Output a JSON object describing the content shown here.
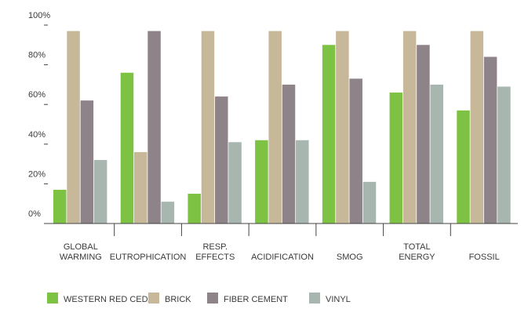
{
  "chart_data": {
    "type": "bar",
    "categories": [
      [
        "GLOBAL",
        "WARMING"
      ],
      [
        "EUTROPHICATION"
      ],
      [
        "RESP.",
        "EFFECTS"
      ],
      [
        "ACIDIFICATION"
      ],
      [
        "SMOG"
      ],
      [
        "TOTAL",
        "ENERGY"
      ],
      [
        "FOSSIL"
      ]
    ],
    "series": [
      {
        "name": "WESTERN RED CEDAR",
        "color": "#7dc242",
        "values": [
          17,
          76,
          15,
          42,
          90,
          66,
          57
        ]
      },
      {
        "name": "BRICK",
        "color": "#c7b899",
        "values": [
          97,
          36,
          97,
          97,
          97,
          97,
          97
        ]
      },
      {
        "name": "FIBER CEMENT",
        "color": "#8d8389",
        "values": [
          62,
          97,
          64,
          70,
          73,
          90,
          84
        ]
      },
      {
        "name": "VINYL",
        "color": "#a7b6ae",
        "values": [
          32,
          11,
          41,
          42,
          21,
          70,
          69
        ]
      }
    ],
    "y_ticks": [
      "0%",
      "20%",
      "40%",
      "60%",
      "80%",
      "100%"
    ],
    "ylim": [
      0,
      100
    ],
    "grid": false,
    "legend_position": "bottom"
  }
}
